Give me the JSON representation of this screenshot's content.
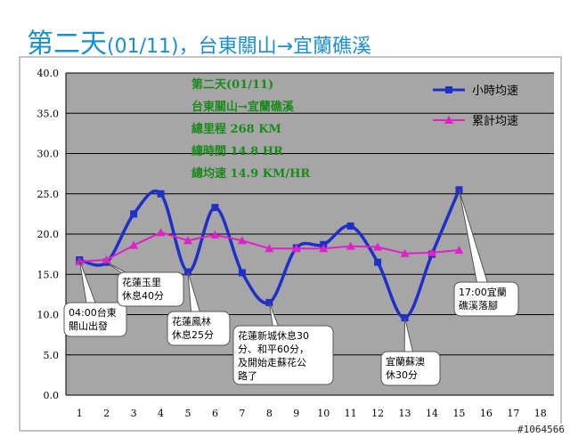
{
  "page": {
    "title_main": "第二天",
    "title_rest": "(01/11)，台東關山→宜蘭礁溪",
    "watermark": "#1064566"
  },
  "info_box": {
    "line1": "第二天(01/11)",
    "line2": "台東關山→宜蘭礁溪",
    "line3": "總里程 268 KM",
    "line4": "總時間 14.8 HR",
    "line5": "總均速 14.9 KM/HR"
  },
  "callouts": [
    {
      "target_x": 1,
      "lines": [
        "04:00台東",
        "關山出發"
      ]
    },
    {
      "target_x": 2,
      "lines": [
        "花蓮玉里",
        "休息40分"
      ]
    },
    {
      "target_x": 5,
      "lines": [
        "花蓮鳳林",
        "休息25分"
      ]
    },
    {
      "target_x": 8,
      "lines": [
        "花蓮新城休息30",
        "分、和平60分，",
        "及開始走蘇花公",
        "路了"
      ]
    },
    {
      "target_x": 13,
      "lines": [
        "宜蘭蘇澳",
        "休30分"
      ]
    },
    {
      "target_x": 15,
      "lines": [
        "17:00宜蘭",
        "礁溪落腳"
      ]
    }
  ],
  "chart_data": {
    "type": "line",
    "title": "",
    "xlabel": "",
    "ylabel": "",
    "x": [
      1,
      2,
      3,
      4,
      5,
      6,
      7,
      8,
      9,
      10,
      11,
      12,
      13,
      14,
      15
    ],
    "x_ticks": [
      "1",
      "2",
      "3",
      "4",
      "5",
      "6",
      "7",
      "8",
      "9",
      "10",
      "11",
      "12",
      "13",
      "14",
      "15",
      "16",
      "17",
      "18"
    ],
    "xlim": [
      0.5,
      18.5
    ],
    "ylim": [
      0,
      40
    ],
    "y_ticks": [
      "0.0",
      "5.0",
      "10.0",
      "15.0",
      "20.0",
      "25.0",
      "30.0",
      "35.0",
      "40.0"
    ],
    "grid": "horizontal",
    "legend_position": "top-right",
    "series": [
      {
        "name": "小時均速",
        "color": "#1f2fc8",
        "marker": "square",
        "smooth": true,
        "values": [
          16.8,
          16.5,
          22.5,
          25.0,
          15.3,
          23.3,
          15.2,
          11.5,
          18.3,
          18.7,
          21.0,
          16.5,
          9.6,
          17.5,
          25.5
        ]
      },
      {
        "name": "累計均速",
        "color": "#e020c8",
        "marker": "triangle",
        "smooth": false,
        "values": [
          16.6,
          16.8,
          18.6,
          20.2,
          19.2,
          19.9,
          19.2,
          18.2,
          18.2,
          18.2,
          18.5,
          18.4,
          17.6,
          17.7,
          18.0
        ]
      }
    ],
    "colors": {
      "plot_background": "#a6a6a6",
      "gridline": "#000000",
      "info_text": "#1a8a1a"
    }
  }
}
